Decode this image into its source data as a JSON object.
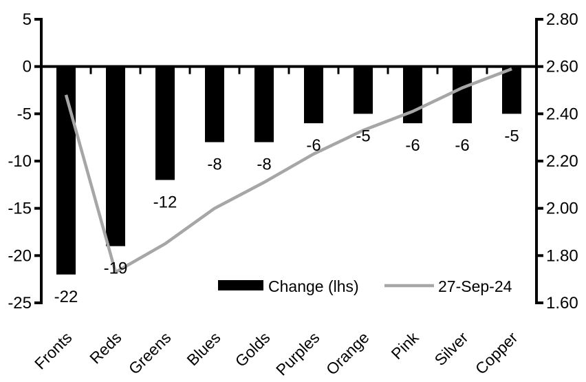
{
  "chart_data": {
    "type": "combo-bar-line",
    "title": "",
    "categories": [
      "Fronts",
      "Reds",
      "Greens",
      "Blues",
      "Golds",
      "Purples",
      "Orange",
      "Pink",
      "Silver",
      "Copper"
    ],
    "series": [
      {
        "name": "Change (lhs)",
        "type": "bar",
        "axis": "left",
        "color": "#000000",
        "values": [
          -22,
          -19,
          -12,
          -8,
          -8,
          -6,
          -5,
          -6,
          -6,
          -5
        ],
        "data_labels": [
          "-22",
          "-19",
          "-12",
          "-8",
          "-8",
          "-6",
          "-5",
          "-6",
          "-6",
          "-5"
        ]
      },
      {
        "name": "27-Sep-24",
        "type": "line",
        "axis": "right",
        "color": "#a6a6a6",
        "values": [
          2.48,
          1.73,
          1.85,
          2.0,
          2.11,
          2.23,
          2.33,
          2.41,
          2.51,
          2.59
        ]
      }
    ],
    "left_axis": {
      "min": -25,
      "max": 5,
      "step": 5,
      "tick_labels": [
        "5",
        "0",
        "-5",
        "-10",
        "-15",
        "-20",
        "-25"
      ]
    },
    "right_axis": {
      "min": 1.6,
      "max": 2.8,
      "step": 0.2,
      "tick_labels": [
        "2.80",
        "2.60",
        "2.40",
        "2.20",
        "2.00",
        "1.80",
        "1.60"
      ]
    },
    "legend": {
      "position": "inside-bottom",
      "items": [
        {
          "label": "Change (lhs)",
          "swatch": "bar",
          "color": "#000000"
        },
        {
          "label": "27-Sep-24",
          "swatch": "line",
          "color": "#a6a6a6"
        }
      ]
    },
    "grid": false,
    "axis_color": "#000000",
    "text_color": "#000000"
  }
}
